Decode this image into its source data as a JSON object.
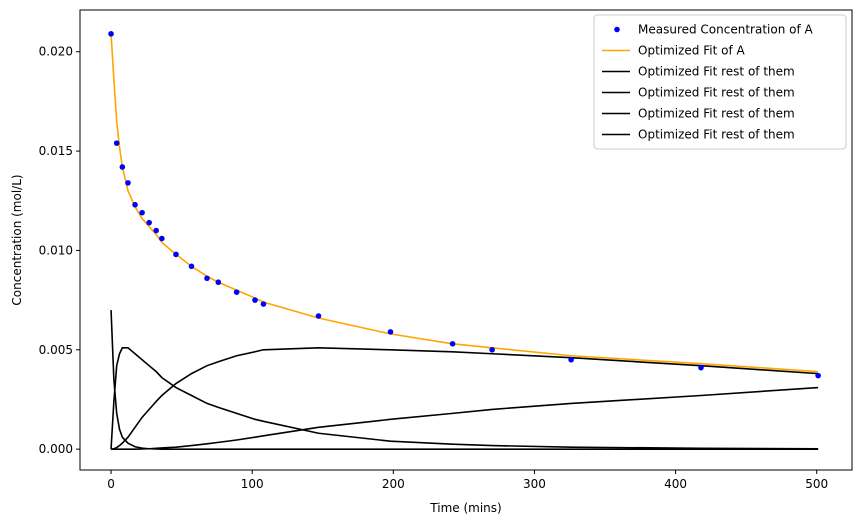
{
  "chart_data": {
    "type": "line",
    "title": "",
    "xlabel": "Time (mins)",
    "ylabel": "Concentration (mol/L)",
    "xlim": [
      -22,
      525
    ],
    "ylim": [
      -0.00105,
      0.0221
    ],
    "xticks": [
      0,
      100,
      200,
      300,
      400,
      500
    ],
    "xtick_labels": [
      "0",
      "100",
      "200",
      "300",
      "400",
      "500"
    ],
    "yticks": [
      0.0,
      0.005,
      0.01,
      0.015,
      0.02
    ],
    "ytick_labels": [
      "0.000",
      "0.005",
      "0.010",
      "0.015",
      "0.020"
    ],
    "grid": false,
    "legend_position": "upper right",
    "series": [
      {
        "name": "Measured Concentration of A",
        "kind": "scatter",
        "color": "#0000ff",
        "x": [
          0,
          4,
          8,
          12,
          17,
          22,
          27,
          32,
          36,
          46,
          57,
          68,
          76,
          89,
          102,
          108,
          147,
          198,
          242,
          270,
          326,
          418,
          501
        ],
        "y": [
          0.0209,
          0.0154,
          0.0142,
          0.0134,
          0.0123,
          0.0119,
          0.0114,
          0.011,
          0.0106,
          0.0098,
          0.0092,
          0.0086,
          0.0084,
          0.0079,
          0.0075,
          0.0073,
          0.0067,
          0.0059,
          0.0053,
          0.005,
          0.0045,
          0.0041,
          0.0037
        ]
      },
      {
        "name": "Optimized Fit of A",
        "kind": "line",
        "color": "#ffa500",
        "x": [
          0,
          2,
          4,
          6,
          8,
          12,
          17,
          22,
          27,
          32,
          36,
          46,
          57,
          68,
          76,
          89,
          102,
          108,
          147,
          198,
          242,
          270,
          326,
          418,
          501
        ],
        "y": [
          0.0209,
          0.0186,
          0.0165,
          0.0152,
          0.0142,
          0.013,
          0.0122,
          0.0116,
          0.0112,
          0.0108,
          0.0104,
          0.0098,
          0.0092,
          0.0087,
          0.0084,
          0.008,
          0.0076,
          0.0074,
          0.0066,
          0.0058,
          0.0053,
          0.0051,
          0.0047,
          0.0043,
          0.0039
        ]
      },
      {
        "name": "Optimized Fit rest of them",
        "kind": "line",
        "color": "#000000",
        "x": [
          0,
          2,
          4,
          6,
          8,
          12,
          17,
          22,
          27,
          32,
          36,
          46,
          57,
          68,
          76,
          89,
          102,
          108,
          147,
          198,
          242,
          270,
          326,
          418,
          501
        ],
        "y": [
          0.007,
          0.0035,
          0.0018,
          0.001,
          0.0006,
          0.0003,
          0.00012,
          5e-05,
          2e-05,
          1e-05,
          0,
          0,
          0,
          0,
          0,
          0,
          0,
          0,
          0,
          0,
          0,
          0,
          0,
          0,
          0
        ]
      },
      {
        "name": "Optimized Fit rest of them",
        "kind": "line",
        "color": "#000000",
        "x": [
          0,
          2,
          4,
          6,
          8,
          12,
          17,
          22,
          27,
          32,
          36,
          46,
          57,
          68,
          76,
          89,
          102,
          108,
          147,
          198,
          242,
          270,
          326,
          418,
          501
        ],
        "y": [
          0.0,
          0.0024,
          0.0042,
          0.0048,
          0.0051,
          0.0051,
          0.0048,
          0.0045,
          0.0042,
          0.0039,
          0.0036,
          0.0031,
          0.0027,
          0.0023,
          0.0021,
          0.0018,
          0.0015,
          0.0014,
          0.0008,
          0.0004,
          0.00025,
          0.00018,
          0.0001,
          4e-05,
          2e-05
        ]
      },
      {
        "name": "Optimized Fit rest of them",
        "kind": "line",
        "color": "#000000",
        "x": [
          0,
          2,
          4,
          6,
          8,
          12,
          17,
          22,
          27,
          32,
          36,
          46,
          57,
          68,
          76,
          89,
          102,
          108,
          147,
          198,
          242,
          270,
          326,
          418,
          501
        ],
        "y": [
          0.0,
          2e-05,
          8e-05,
          0.00018,
          0.0003,
          0.0006,
          0.0011,
          0.0016,
          0.002,
          0.0024,
          0.0027,
          0.0033,
          0.0038,
          0.0042,
          0.0044,
          0.0047,
          0.0049,
          0.005,
          0.0051,
          0.005,
          0.0049,
          0.0048,
          0.0046,
          0.0042,
          0.0038
        ]
      },
      {
        "name": "Optimized Fit rest of them",
        "kind": "line",
        "color": "#000000",
        "x": [
          0,
          2,
          4,
          6,
          8,
          12,
          17,
          22,
          27,
          32,
          36,
          46,
          57,
          68,
          76,
          89,
          102,
          108,
          147,
          198,
          242,
          270,
          326,
          418,
          501
        ],
        "y": [
          0,
          0,
          0,
          0,
          0,
          0,
          0,
          1e-05,
          2e-05,
          4e-05,
          6e-05,
          0.0001,
          0.00018,
          0.00027,
          0.00034,
          0.00046,
          0.0006,
          0.00067,
          0.0011,
          0.0015,
          0.0018,
          0.002,
          0.0023,
          0.0027,
          0.0031
        ]
      }
    ]
  }
}
